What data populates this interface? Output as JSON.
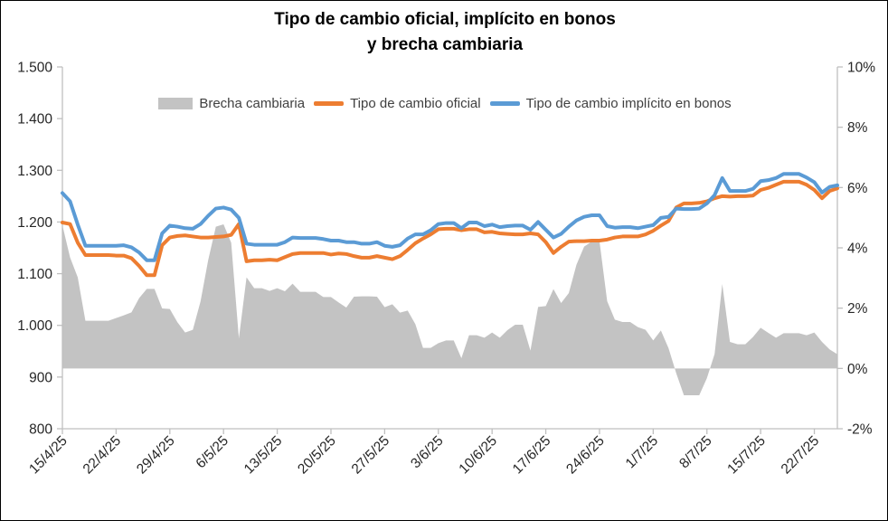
{
  "title": {
    "line1": "Tipo de cambio oficial, implícito en bonos",
    "line2": "y brecha cambiaria"
  },
  "colors": {
    "area": "#C3C3C3",
    "oficial": "#ED7D31",
    "implicito": "#5B9BD5",
    "axis_line": "#BFBFBF",
    "axis_text": "#262626",
    "title_text": "#000000"
  },
  "chart_data": {
    "type": "area",
    "subtype": "combo-line-area-dual-axis",
    "title": "Tipo de cambio oficial, implícito en bonos y brecha cambiaria",
    "xlabel": "",
    "ylabel_left": "",
    "ylabel_right": "",
    "grid": false,
    "legend_position": "top",
    "x_tick_labels": [
      "15/4/25",
      "22/4/25",
      "29/4/25",
      "6/5/25",
      "13/5/25",
      "20/5/25",
      "27/5/25",
      "3/6/25",
      "10/6/25",
      "17/6/25",
      "24/6/25",
      "1/7/25",
      "8/7/25",
      "15/7/25",
      "22/7/25"
    ],
    "x_tick_indices": [
      0,
      7,
      14,
      21,
      28,
      35,
      42,
      49,
      56,
      63,
      70,
      77,
      84,
      91,
      98
    ],
    "left_axis": {
      "min": 800,
      "max": 1500,
      "step": 100,
      "tick_labels": [
        "1.500",
        "1.400",
        "1.300",
        "1.200",
        "1.100",
        "1.000",
        "900",
        "800"
      ]
    },
    "right_axis": {
      "min": -2,
      "max": 10,
      "step": 2,
      "tick_labels": [
        "10%",
        "8%",
        "6%",
        "4%",
        "2%",
        "0%",
        "-2%"
      ]
    },
    "dates": [
      "15/4",
      "16/4",
      "17/4",
      "18/4",
      "19/4",
      "20/4",
      "21/4",
      "22/4",
      "23/4",
      "24/4",
      "25/4",
      "26/4",
      "27/4",
      "28/4",
      "29/4",
      "30/4",
      "1/5",
      "2/5",
      "3/5",
      "4/5",
      "5/5",
      "6/5",
      "7/5",
      "8/5",
      "9/5",
      "10/5",
      "11/5",
      "12/5",
      "13/5",
      "14/5",
      "15/5",
      "16/5",
      "17/5",
      "18/5",
      "19/5",
      "20/5",
      "21/5",
      "22/5",
      "23/5",
      "24/5",
      "25/5",
      "26/5",
      "27/5",
      "28/5",
      "29/5",
      "30/5",
      "31/5",
      "1/6",
      "2/6",
      "3/6",
      "4/6",
      "5/6",
      "6/6",
      "7/6",
      "8/6",
      "9/6",
      "10/6",
      "11/6",
      "12/6",
      "13/6",
      "14/6",
      "15/6",
      "16/6",
      "17/6",
      "18/6",
      "19/6",
      "20/6",
      "21/6",
      "22/6",
      "23/6",
      "24/6",
      "25/6",
      "26/6",
      "27/6",
      "28/6",
      "29/6",
      "30/6",
      "1/7",
      "2/7",
      "3/7",
      "4/7",
      "5/7",
      "6/7",
      "7/7",
      "8/7",
      "9/7",
      "10/7",
      "11/7",
      "12/7",
      "13/7",
      "14/7",
      "15/7",
      "16/7",
      "17/7",
      "18/7",
      "19/7",
      "20/7",
      "21/7",
      "22/7",
      "23/7",
      "24/7",
      "25/7"
    ],
    "series": [
      {
        "name": "Brecha cambiaria",
        "type": "area",
        "axis": "right",
        "unit": "%",
        "color": "#C3C3C3",
        "values": [
          4.75,
          3.68,
          3.02,
          1.58,
          1.58,
          1.58,
          1.58,
          1.67,
          1.76,
          1.86,
          2.33,
          2.64,
          2.64,
          1.99,
          1.97,
          1.53,
          1.19,
          1.28,
          2.22,
          3.59,
          4.7,
          4.78,
          4.17,
          1.0,
          3.02,
          2.66,
          2.66,
          2.57,
          2.66,
          2.56,
          2.81,
          2.54,
          2.54,
          2.54,
          2.37,
          2.37,
          2.19,
          2.02,
          2.38,
          2.39,
          2.39,
          2.38,
          2.03,
          2.13,
          1.85,
          1.92,
          1.47,
          0.68,
          0.68,
          0.84,
          0.93,
          0.93,
          0.34,
          1.1,
          1.1,
          1.02,
          1.19,
          1.02,
          1.27,
          1.45,
          1.45,
          0.59,
          2.04,
          2.07,
          2.63,
          2.17,
          2.5,
          3.44,
          4.04,
          4.21,
          4.21,
          2.23,
          1.62,
          1.54,
          1.54,
          1.37,
          1.28,
          0.93,
          1.26,
          0.67,
          -0.16,
          -0.89,
          -0.89,
          -0.89,
          -0.32,
          0.48,
          2.8,
          0.88,
          0.8,
          0.8,
          1.04,
          1.35,
          1.18,
          1.02,
          1.17,
          1.17,
          1.17,
          1.1,
          1.19,
          0.88,
          0.63,
          0.47
        ]
      },
      {
        "name": "Tipo de cambio oficial",
        "type": "line",
        "axis": "left",
        "unit": "ARS",
        "color": "#ED7D31",
        "values": [
          1199,
          1196,
          1160,
          1136,
          1136,
          1136,
          1136,
          1135,
          1135,
          1130,
          1115,
          1097,
          1097,
          1155,
          1170,
          1173,
          1174,
          1172,
          1170,
          1170,
          1171,
          1172,
          1175,
          1196,
          1124,
          1126,
          1126,
          1127,
          1126,
          1132,
          1138,
          1140,
          1140,
          1140,
          1140,
          1137,
          1139,
          1138,
          1134,
          1131,
          1131,
          1134,
          1131,
          1128,
          1134,
          1146,
          1159,
          1168,
          1176,
          1186,
          1187,
          1187,
          1184,
          1186,
          1186,
          1180,
          1181,
          1178,
          1177,
          1176,
          1176,
          1178,
          1176,
          1161,
          1140,
          1152,
          1162,
          1163,
          1163,
          1164,
          1164,
          1166,
          1170,
          1172,
          1172,
          1172,
          1176,
          1183,
          1193,
          1202,
          1228,
          1236,
          1236,
          1237,
          1240,
          1246,
          1250,
          1249,
          1250,
          1250,
          1251,
          1262,
          1266,
          1272,
          1278,
          1278,
          1278,
          1272,
          1262,
          1246,
          1260,
          1265
        ]
      },
      {
        "name": "Tipo de cambio implícito en bonos",
        "type": "line",
        "axis": "left",
        "unit": "ARS",
        "color": "#5B9BD5",
        "values": [
          1256,
          1240,
          1195,
          1154,
          1154,
          1154,
          1154,
          1154,
          1155,
          1151,
          1141,
          1126,
          1126,
          1178,
          1193,
          1191,
          1188,
          1187,
          1196,
          1212,
          1226,
          1228,
          1224,
          1208,
          1158,
          1156,
          1156,
          1156,
          1156,
          1161,
          1170,
          1169,
          1169,
          1169,
          1167,
          1164,
          1164,
          1161,
          1161,
          1158,
          1158,
          1161,
          1154,
          1152,
          1155,
          1168,
          1176,
          1176,
          1184,
          1196,
          1198,
          1198,
          1188,
          1199,
          1199,
          1192,
          1195,
          1190,
          1192,
          1193,
          1193,
          1185,
          1200,
          1185,
          1170,
          1177,
          1191,
          1203,
          1210,
          1213,
          1213,
          1192,
          1189,
          1190,
          1190,
          1188,
          1191,
          1194,
          1208,
          1210,
          1226,
          1225,
          1225,
          1226,
          1236,
          1252,
          1285,
          1260,
          1260,
          1260,
          1264,
          1279,
          1281,
          1285,
          1293,
          1293,
          1293,
          1286,
          1277,
          1257,
          1268,
          1271
        ]
      }
    ]
  }
}
